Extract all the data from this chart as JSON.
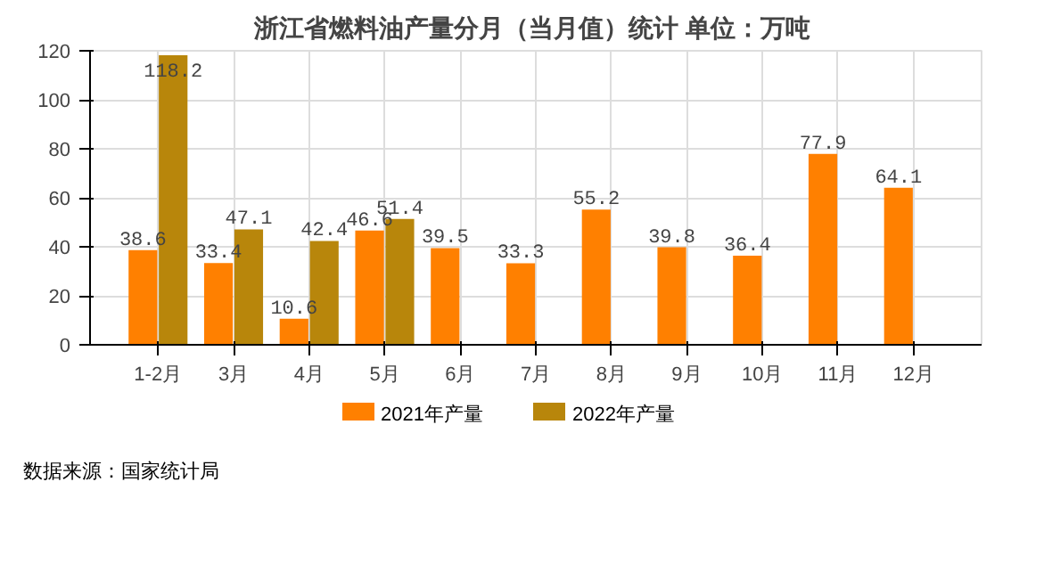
{
  "chart_data": {
    "type": "bar",
    "title": "浙江省燃料油产量分月（当月值）统计  单位：万吨",
    "categories": [
      "1-2月",
      "3月",
      "4月",
      "5月",
      "6月",
      "7月",
      "8月",
      "9月",
      "10月",
      "11月",
      "12月"
    ],
    "series": [
      {
        "name": "2021年产量",
        "color": "#ff8000",
        "values": [
          38.6,
          33.4,
          10.6,
          46.6,
          39.5,
          33.3,
          55.2,
          39.8,
          36.4,
          77.9,
          64.1
        ]
      },
      {
        "name": "2022年产量",
        "color": "#b8860b",
        "values": [
          118.2,
          47.1,
          42.4,
          51.4,
          null,
          null,
          null,
          null,
          null,
          null,
          null
        ]
      }
    ],
    "ylim": [
      0,
      120
    ],
    "yticks": [
      0,
      20,
      40,
      60,
      80,
      100,
      120
    ],
    "grid": true,
    "legend": "bottom",
    "data_labels": true,
    "annotations": [
      "数据来源：国家统计局"
    ]
  }
}
